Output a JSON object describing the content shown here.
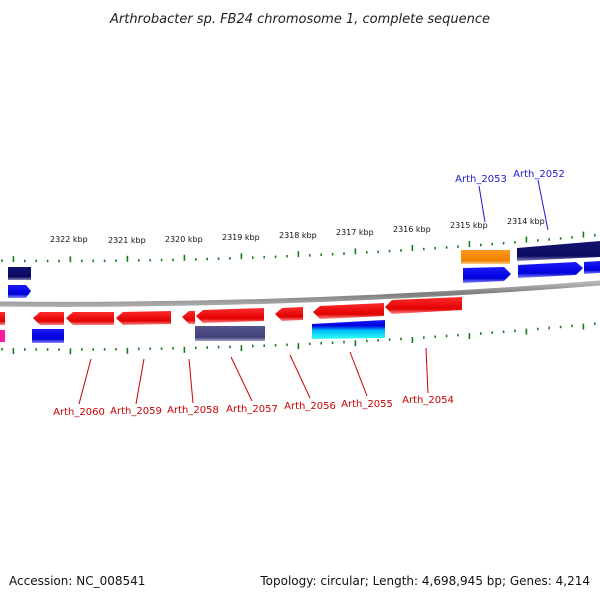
{
  "title": "Arthrobacter sp. FB24 chromosome 1, complete sequence",
  "footer": {
    "accession": "Accession: NC_008541",
    "topology": "Topology: circular; Length: 4,698,945 bp; Genes: 4,214"
  },
  "colors": {
    "backbone": "#8a8a8a",
    "tick": "#1a7a1a",
    "forward_label": "#1a1ad0",
    "reverse_label": "#cc0000"
  },
  "kbp_labels": [
    "2322 kbp",
    "2321 kbp",
    "2320 kbp",
    "2319 kbp",
    "2318 kbp",
    "2317 kbp",
    "2316 kbp",
    "2315 kbp",
    "2314 kbp"
  ],
  "gene_labels_top": [
    "Arth_2053",
    "Arth_2052"
  ],
  "gene_labels_bottom": [
    "Arth_2060",
    "Arth_2059",
    "Arth_2058",
    "Arth_2057",
    "Arth_2056",
    "Arth_2055",
    "Arth_2054"
  ]
}
